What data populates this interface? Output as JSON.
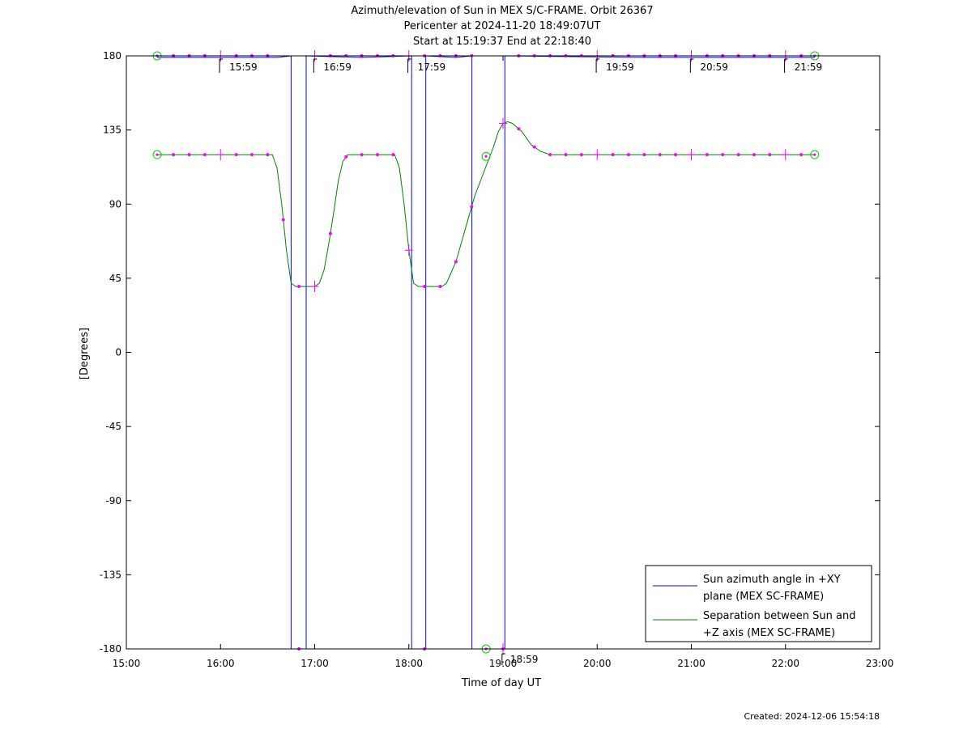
{
  "chart_data": {
    "type": "line",
    "title_lines": [
      "Azimuth/elevation of Sun in MEX S/C-FRAME.  Orbit 26367",
      "Pericenter at 2024-11-20 18:49:07UT",
      "Start at 15:19:37 End at 22:18:40"
    ],
    "xlabel": "Time of day UT",
    "ylabel": "[Degrees]",
    "xlim": [
      15.0,
      23.0
    ],
    "ylim": [
      -180,
      180
    ],
    "xticks": [
      15,
      16,
      17,
      18,
      19,
      20,
      21,
      22,
      23
    ],
    "xtick_labels": [
      "15:00",
      "16:00",
      "17:00",
      "18:00",
      "19:00",
      "20:00",
      "21:00",
      "22:00",
      "23:00"
    ],
    "yticks": [
      180,
      135,
      90,
      45,
      0,
      -45,
      -90,
      -135,
      -180
    ],
    "ytick_labels": [
      "180",
      "135",
      "90",
      "45",
      "0",
      "-45",
      "-90",
      "-135",
      "-180"
    ],
    "legend_position": "bottom-right",
    "series": [
      {
        "name": "Sun azimuth angle in +XY plane (MEX SC-FRAME)",
        "legend_lines": [
          "Sun azimuth angle in +XY",
          "plane (MEX SC-FRAME)"
        ],
        "color": "#0000ff",
        "x": [
          15.327,
          16.6,
          16.75,
          16.75,
          16.91,
          16.91,
          17.5,
          18.03,
          18.03,
          18.18,
          18.18,
          18.5,
          18.67,
          18.67,
          19.02,
          19.02,
          20.5,
          22.31
        ],
        "y": [
          179,
          179,
          180,
          -180,
          -180,
          180,
          179,
          180,
          -180,
          -180,
          180,
          179,
          180,
          -180,
          -180,
          180,
          179,
          179
        ]
      },
      {
        "name": "Separation between Sun and +Z axis (MEX SC-FRAME)",
        "legend_lines": [
          "Separation between Sun and",
          "+Z axis (MEX SC-FRAME)"
        ],
        "color": "#008000",
        "x": [
          15.327,
          16.55,
          16.6,
          16.65,
          16.7,
          16.75,
          16.8,
          16.95,
          17.0,
          17.05,
          17.1,
          17.15,
          17.2,
          17.25,
          17.3,
          17.35,
          17.4,
          17.85,
          17.9,
          17.95,
          18.0,
          18.05,
          18.1,
          18.35,
          18.4,
          18.5,
          18.6,
          18.7,
          18.8,
          18.9,
          18.95,
          19.0,
          19.05,
          19.1,
          19.2,
          19.3,
          19.4,
          19.5,
          19.6,
          22.31
        ],
        "y": [
          120,
          120,
          112,
          90,
          62,
          42,
          40,
          40,
          40,
          42,
          50,
          66,
          84,
          104,
          116,
          120,
          120,
          120,
          112,
          90,
          62,
          42,
          40,
          40,
          42,
          55,
          75,
          95,
          110,
          125,
          134,
          139,
          140,
          139,
          134,
          126,
          122,
          120,
          120,
          120
        ]
      }
    ],
    "markers": {
      "color": "#ff00ff",
      "azimuth_dot_times": [
        15.5,
        15.667,
        15.833,
        16.167,
        16.333,
        16.5,
        17.167,
        17.333,
        17.5,
        17.667,
        17.833,
        18.167,
        18.333,
        18.5,
        18.667,
        19.167,
        19.333,
        19.5,
        19.667,
        19.833,
        20.167,
        20.333,
        20.5,
        20.667,
        20.833,
        21.167,
        21.333,
        21.5,
        21.667,
        21.833,
        22.167
      ],
      "separation_dot_times": [
        15.5,
        15.667,
        15.833,
        16.167,
        16.333,
        16.5,
        16.667,
        16.833,
        17.167,
        17.333,
        17.5,
        17.667,
        17.833,
        18.167,
        18.333,
        18.5,
        18.667,
        19.167,
        19.333,
        19.5,
        19.667,
        19.833,
        20.167,
        20.333,
        20.5,
        20.667,
        20.833,
        21.167,
        21.333,
        21.5,
        21.667,
        21.833,
        22.167
      ],
      "bottom_dots": [
        {
          "x": 16.833,
          "y": -180
        },
        {
          "x": 18.167,
          "y": -180
        },
        {
          "x": 19.0,
          "y": -180
        }
      ],
      "hour_crosses_azimuth": [
        16.0,
        17.0,
        18.0,
        20.0,
        21.0,
        22.0
      ],
      "hour_crosses_separation": [
        16.0,
        17.0,
        18.0,
        19.0,
        20.0,
        21.0,
        22.0
      ],
      "hour_cross_bottom": [
        {
          "x": 19.0,
          "y": -180
        }
      ],
      "circles": [
        {
          "x": 15.327,
          "y": 180
        },
        {
          "x": 22.31,
          "y": 180
        },
        {
          "x": 15.327,
          "y": 120
        },
        {
          "x": 22.31,
          "y": 120
        },
        {
          "x": 18.82,
          "y": 119
        },
        {
          "x": 18.82,
          "y": -180
        }
      ]
    },
    "hour_annotations": [
      {
        "x": 15.99,
        "label": "15:59",
        "pos": "top"
      },
      {
        "x": 16.99,
        "label": "16:59",
        "pos": "top"
      },
      {
        "x": 17.99,
        "label": "17:59",
        "pos": "top"
      },
      {
        "x": 18.99,
        "label": "18:59",
        "pos": "bottom"
      },
      {
        "x": 19.99,
        "label": "19:59",
        "pos": "top"
      },
      {
        "x": 20.99,
        "label": "20:59",
        "pos": "top"
      },
      {
        "x": 21.99,
        "label": "21:59",
        "pos": "top"
      }
    ]
  },
  "footer": {
    "created": "Created: 2024-12-06 15:54:18"
  }
}
